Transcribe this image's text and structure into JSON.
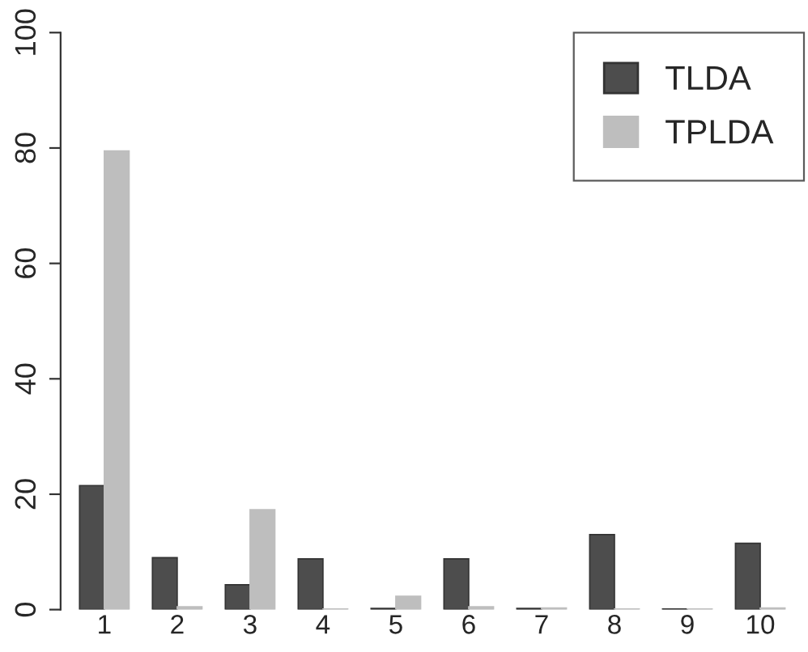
{
  "chart_data": {
    "type": "bar",
    "categories": [
      "1",
      "2",
      "3",
      "4",
      "5",
      "6",
      "7",
      "8",
      "9",
      "10"
    ],
    "series": [
      {
        "name": "TLDA",
        "color": "#4d4d4d",
        "values": [
          21.5,
          9,
          4.3,
          8.8,
          0.2,
          8.8,
          0.2,
          13,
          0.1,
          11.5
        ]
      },
      {
        "name": "TPLDA",
        "color": "#bebebe",
        "values": [
          79.5,
          0.5,
          17.3,
          0.1,
          2.3,
          0.5,
          0.3,
          0.1,
          0.1,
          0.3
        ]
      }
    ],
    "ylim": [
      0,
      100
    ],
    "yticks": [
      0,
      20,
      40,
      60,
      80,
      100
    ],
    "grid": false,
    "legend": "top right"
  }
}
